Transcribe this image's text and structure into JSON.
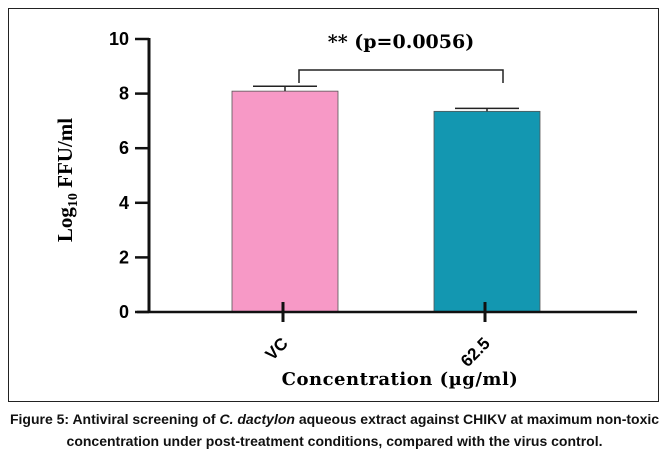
{
  "chart_data": {
    "type": "bar",
    "categories": [
      "VC",
      "62.5"
    ],
    "values": [
      8.09,
      7.35
    ],
    "errors": [
      0.18,
      0.11
    ],
    "colors": [
      "#F799C6",
      "#1397B1"
    ],
    "ylabel_main": "Log",
    "ylabel_sub": "10",
    "ylabel_rest": " FFU/ml",
    "xlabel": "Concentration (µg/ml)",
    "ylim": [
      0,
      10
    ],
    "yticks": [
      "0",
      "2",
      "4",
      "6",
      "8",
      "10"
    ],
    "annotation": "** (p=0.0056)"
  },
  "caption": {
    "prefix": "Figure 5: Antiviral screening of ",
    "italic": "C. dactylon",
    "suffix": " aqueous extract against CHIKV at maximum non-toxic concentration under post-treatment conditions, compared with the virus control."
  }
}
